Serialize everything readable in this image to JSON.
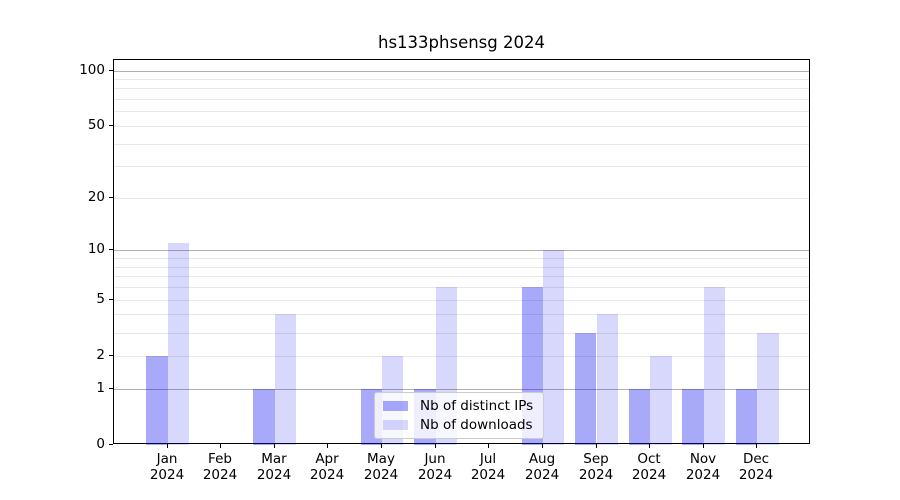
{
  "title": "hs133phsensg 2024",
  "legend": {
    "items": [
      {
        "label": "Nb of distinct IPs",
        "color": "rgba(10,10,240,0.35)"
      },
      {
        "label": "Nb of downloads",
        "color": "rgba(10,10,240,0.16)"
      }
    ]
  },
  "chart_data": {
    "type": "bar",
    "title": "hs133phsensg 2024",
    "categories": [
      "Jan 2024",
      "Feb 2024",
      "Mar 2024",
      "Apr 2024",
      "May 2024",
      "Jun 2024",
      "Jul 2024",
      "Aug 2024",
      "Sep 2024",
      "Oct 2024",
      "Nov 2024",
      "Dec 2024"
    ],
    "series": [
      {
        "name": "Nb of distinct IPs",
        "key": "distinct-ips",
        "color": "rgba(10,10,240,0.35)",
        "values": [
          2,
          0,
          1,
          0,
          1,
          1,
          0,
          6,
          3,
          1,
          1,
          1
        ]
      },
      {
        "name": "Nb of downloads",
        "key": "downloads",
        "color": "rgba(10,10,240,0.16)",
        "values": [
          11,
          0,
          4,
          0,
          2,
          6,
          0,
          10,
          4,
          2,
          6,
          3
        ]
      }
    ],
    "xlabel": "",
    "ylabel": "",
    "yscale": "log1p",
    "y_ticks": [
      0,
      1,
      2,
      5,
      10,
      20,
      50,
      100
    ],
    "y_max": 114,
    "ylim": [
      0,
      114
    ],
    "grid": {
      "major": [
        1,
        10,
        100
      ],
      "minor": [
        2,
        3,
        4,
        5,
        6,
        7,
        8,
        9,
        20,
        30,
        40,
        50,
        60,
        70,
        80,
        90
      ]
    },
    "legend_position": "inside lower-center",
    "colors": {
      "major_grid": "#b0b0b0",
      "minor_grid": "#e8e8e8",
      "spine": "#000000",
      "text": "#000000",
      "background": "#ffffff"
    }
  }
}
